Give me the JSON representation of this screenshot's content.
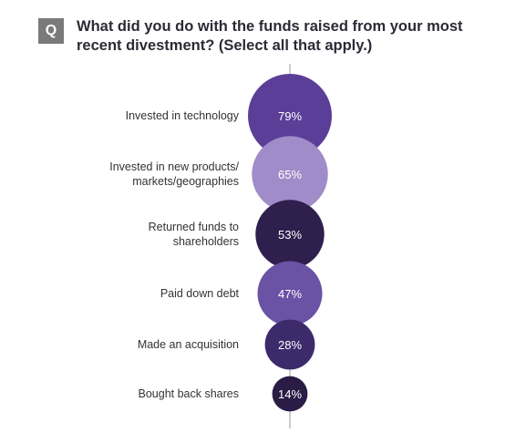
{
  "header": {
    "badge": "Q",
    "question": "What did you do with the funds raised from your most recent divestment? (Select all that apply.)"
  },
  "chart_data": {
    "type": "bubble",
    "title": "What did you do with the funds raised from your most recent divestment? (Select all that apply.)",
    "value_unit": "%",
    "categories": [
      [
        "Invested in technology"
      ],
      [
        "Invested in new products/",
        "markets/geographies"
      ],
      [
        "Returned funds to",
        "shareholders"
      ],
      [
        "Paid down debt"
      ],
      [
        "Made an acquisition"
      ],
      [
        "Bought back shares"
      ]
    ],
    "values": [
      79,
      65,
      53,
      47,
      28,
      14
    ],
    "value_labels": [
      "79%",
      "65%",
      "53%",
      "47%",
      "28%",
      "14%"
    ],
    "colors": [
      "#5b3e98",
      "#a08cc8",
      "#2f1f4d",
      "#6a52a4",
      "#3d2a6b",
      "#2a1c45"
    ],
    "axis_color": "#9a9a9a",
    "label_color": "#333333"
  }
}
